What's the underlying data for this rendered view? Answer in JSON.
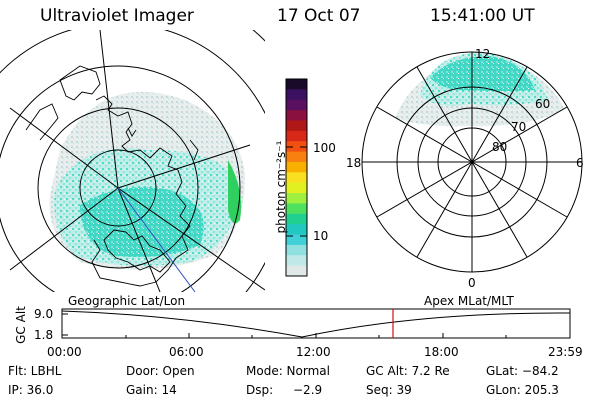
{
  "header": {
    "instrument": "Ultraviolet Imager",
    "date": "17 Oct 07",
    "time": "15:41:00 UT"
  },
  "colorbar": {
    "unit_label": "photon cm⁻²s⁻¹",
    "ticks": [
      "100",
      "10"
    ],
    "colors": [
      "#1a0a2a",
      "#3a1060",
      "#5a1060",
      "#8a1040",
      "#b01818",
      "#d82818",
      "#f05010",
      "#f88010",
      "#f8b000",
      "#f8e020",
      "#e0f020",
      "#a0f040",
      "#50e060",
      "#20d090",
      "#20c8c0",
      "#40d0d8",
      "#90e0e0",
      "#c0e8e8",
      "#e0e8e8"
    ]
  },
  "left_map": {
    "label": "Geographic Lat/Lon"
  },
  "right_map": {
    "label": "Apex MLat/MLT",
    "mlt_labels": {
      "top": "12",
      "left": "18",
      "right": "6",
      "bottom": "0"
    },
    "mlat_labels": [
      "60",
      "70",
      "80"
    ]
  },
  "altitude_plot": {
    "ylabel": "GC Alt",
    "y_ticks": [
      "9.0",
      "1.8"
    ],
    "x_ticks": [
      "00:00",
      "06:00",
      "12:00",
      "18:00",
      "23:59"
    ],
    "marker_time": "15:41",
    "marker_color": "#d01010"
  },
  "info": {
    "filter": "Flt: LBHL",
    "door": "Door: Open",
    "mode": "Mode: Normal",
    "gc_alt": "GC Alt: 7.2 Re",
    "glat": "GLat: −84.2",
    "ip": "IP: 36.0",
    "gain": "Gain: 14",
    "dsp_label": "Dsp:",
    "dsp_value": "−2.9",
    "seq": "Seq: 39",
    "glon": "GLon: 205.3"
  }
}
